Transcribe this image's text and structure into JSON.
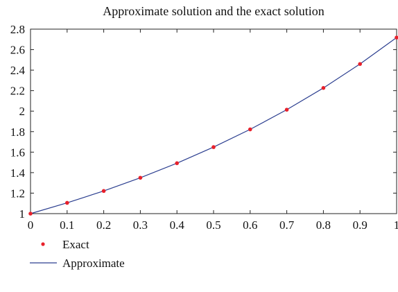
{
  "chart_data": {
    "type": "line",
    "title": "Approximate solution and the exact solution",
    "xlabel": "",
    "ylabel": "",
    "xlim": [
      0,
      1
    ],
    "ylim": [
      1,
      2.8
    ],
    "x_ticks": [
      "0",
      "0.1",
      "0.2",
      "0.3",
      "0.4",
      "0.5",
      "0.6",
      "0.7",
      "0.8",
      "0.9",
      "1"
    ],
    "y_ticks": [
      "1",
      "1.2",
      "1.4",
      "1.6",
      "1.8",
      "2",
      "2.2",
      "2.4",
      "2.6",
      "2.8"
    ],
    "grid": false,
    "legend_position": "below",
    "series": [
      {
        "name": "Exact",
        "style": "markers",
        "color": "#e8212b",
        "x": [
          0,
          0.1,
          0.2,
          0.3,
          0.4,
          0.5,
          0.6,
          0.7,
          0.8,
          0.9,
          1
        ],
        "y": [
          1,
          1.105,
          1.221,
          1.35,
          1.492,
          1.649,
          1.822,
          2.014,
          2.226,
          2.46,
          2.718
        ]
      },
      {
        "name": "Approximate",
        "style": "line",
        "color": "#2a3d8f",
        "x": [
          0,
          0.1,
          0.2,
          0.3,
          0.4,
          0.5,
          0.6,
          0.7,
          0.8,
          0.9,
          1
        ],
        "y": [
          1,
          1.105,
          1.221,
          1.35,
          1.492,
          1.649,
          1.822,
          2.014,
          2.226,
          2.46,
          2.718
        ]
      }
    ]
  }
}
